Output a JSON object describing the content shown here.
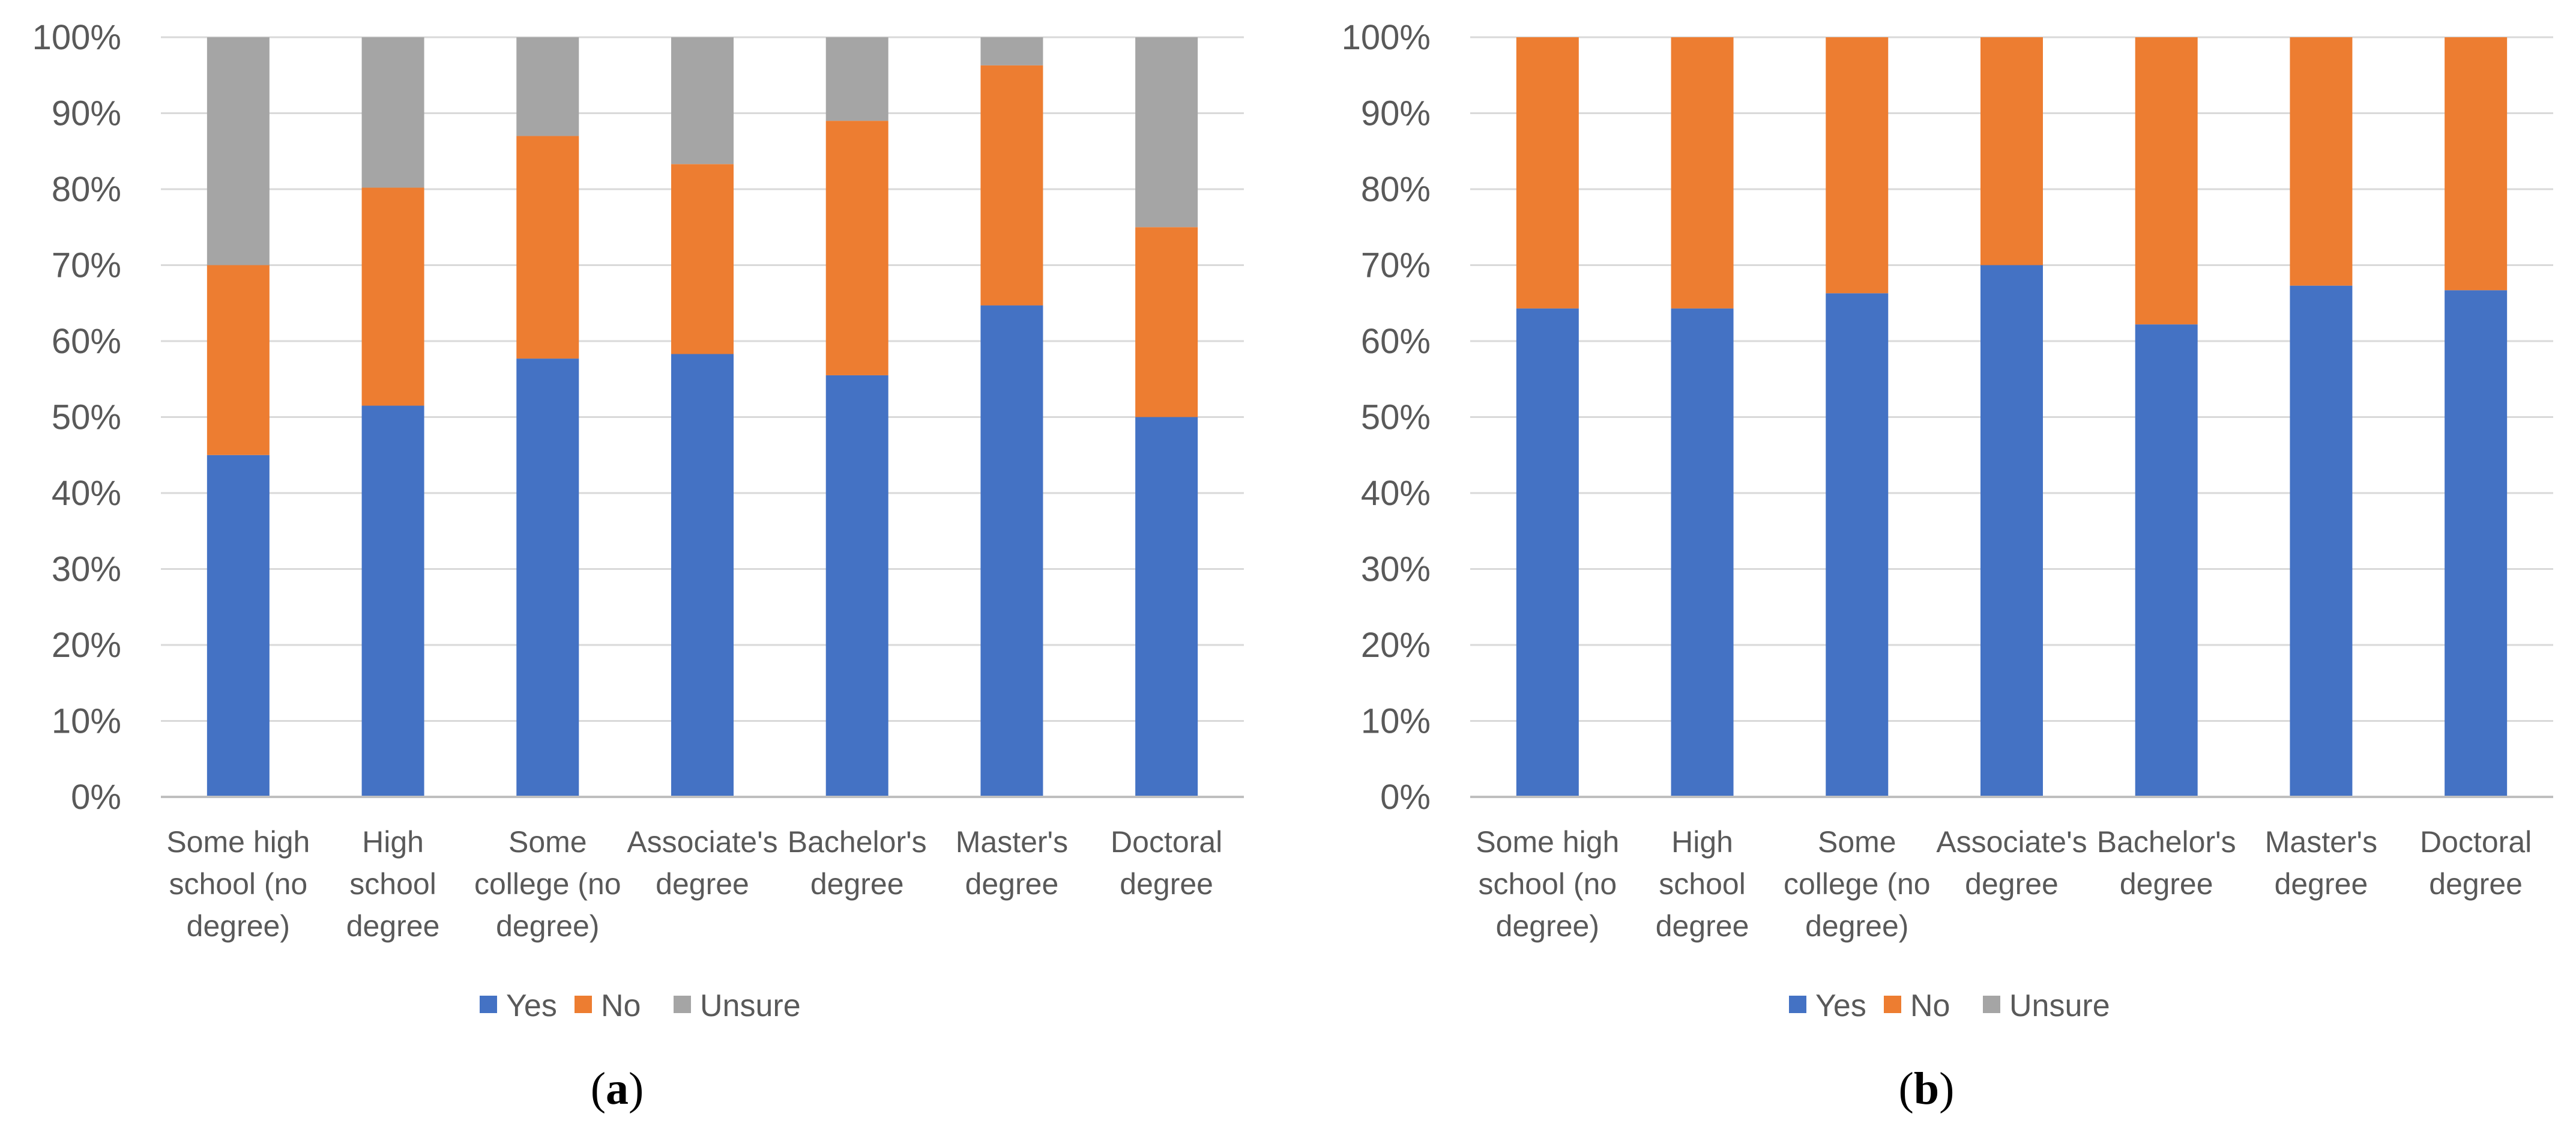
{
  "chart_data": [
    {
      "type": "bar",
      "stacked": true,
      "caption": "a",
      "categories": [
        [
          "Some high",
          "school (no",
          "degree)"
        ],
        [
          "High",
          "school",
          "degree"
        ],
        [
          "Some",
          "college (no",
          "degree)"
        ],
        [
          "Associate's",
          "degree"
        ],
        [
          "Bachelor's",
          "degree"
        ],
        [
          "Master's",
          "degree"
        ],
        [
          "Doctoral",
          "degree"
        ]
      ],
      "series": [
        {
          "name": "Yes",
          "values": [
            45,
            51.5,
            57.7,
            58.3,
            55.5,
            64.7,
            50
          ]
        },
        {
          "name": "No",
          "values": [
            25,
            28.7,
            29.3,
            25,
            33.5,
            31.6,
            25
          ]
        },
        {
          "name": "Unsure",
          "values": [
            30,
            19.8,
            13,
            16.7,
            11,
            3.7,
            25
          ]
        }
      ],
      "yticks": [
        "0%",
        "10%",
        "20%",
        "30%",
        "40%",
        "50%",
        "60%",
        "70%",
        "80%",
        "90%",
        "100%"
      ],
      "ylim": [
        0,
        100
      ],
      "legend_position": "bottom"
    },
    {
      "type": "bar",
      "stacked": true,
      "caption": "b",
      "categories": [
        [
          "Some high",
          "school (no",
          "degree)"
        ],
        [
          "High",
          "school",
          "degree"
        ],
        [
          "Some",
          "college (no",
          "degree)"
        ],
        [
          "Associate's",
          "degree"
        ],
        [
          "Bachelor's",
          "degree"
        ],
        [
          "Master's",
          "degree"
        ],
        [
          "Doctoral",
          "degree"
        ]
      ],
      "series": [
        {
          "name": "Yes",
          "values": [
            64.3,
            64.3,
            66.3,
            70,
            62.2,
            67.3,
            66.7
          ]
        },
        {
          "name": "No",
          "values": [
            35.7,
            35.7,
            33.7,
            30,
            37.8,
            32.7,
            33.3
          ]
        },
        {
          "name": "Unsure",
          "values": [
            0,
            0,
            0,
            0,
            0,
            0,
            0
          ]
        }
      ],
      "yticks": [
        "0%",
        "10%",
        "20%",
        "30%",
        "40%",
        "50%",
        "60%",
        "70%",
        "80%",
        "90%",
        "100%"
      ],
      "ylim": [
        0,
        100
      ],
      "legend_position": "bottom"
    }
  ],
  "colors": {
    "Yes": "#4472c4",
    "No": "#ed7d31",
    "Unsure": "#a5a5a5"
  }
}
